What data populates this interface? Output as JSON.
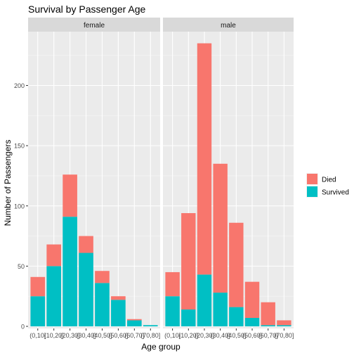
{
  "chart_data": {
    "type": "bar",
    "stacked": true,
    "title": "Survival by Passenger Age",
    "xlabel": "Age group",
    "ylabel": "Number of Passengers",
    "ylim": [
      0,
      240
    ],
    "yticks": [
      0,
      50,
      100,
      150,
      200
    ],
    "grid": true,
    "legend_position": "right",
    "categories": [
      "(0,10]",
      "(10,20]",
      "(20,30]",
      "(30,40]",
      "(40,50]",
      "(50,60]",
      "(60,70]",
      "(70,80]"
    ],
    "series": [
      {
        "name": "Died",
        "color": "#F8766D"
      },
      {
        "name": "Survived",
        "color": "#00BFC4"
      }
    ],
    "facets": [
      {
        "label": "female",
        "survived": [
          25,
          50,
          91,
          61,
          36,
          22,
          5,
          1
        ],
        "died": [
          16,
          18,
          35,
          14,
          10,
          3,
          1,
          0
        ]
      },
      {
        "label": "male",
        "survived": [
          25,
          14,
          43,
          28,
          16,
          7,
          1,
          1
        ],
        "died": [
          20,
          80,
          192,
          107,
          70,
          30,
          19,
          4
        ]
      }
    ]
  }
}
